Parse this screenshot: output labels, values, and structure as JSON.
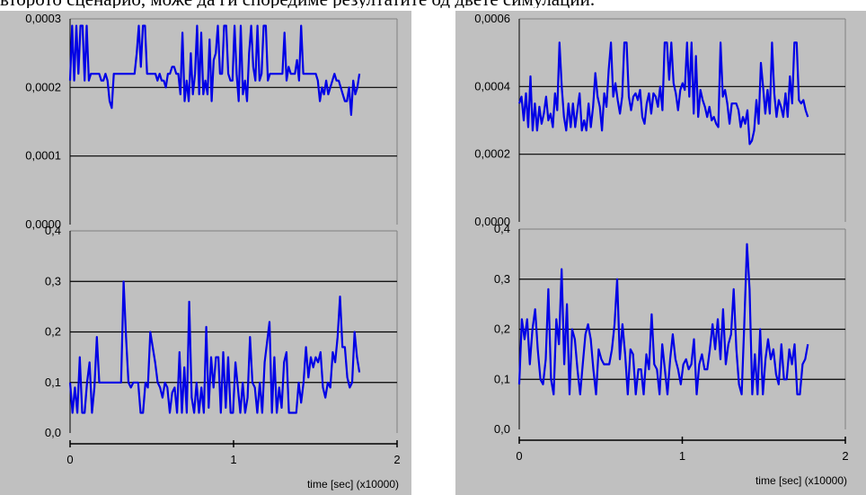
{
  "caption": "второто сценарио, може да ги споредиме резултатите од двете симулации.",
  "colors": {
    "background": "#c0c0c0",
    "line": "#0000e6",
    "grid": "#000000"
  },
  "chart_data": [
    {
      "type": "line",
      "panel": "left-top",
      "ylim": [
        0,
        0.0003
      ],
      "yticks": [
        "0,0000",
        "0,0001",
        "0,0002",
        "0,0003"
      ],
      "gridlines": [
        0.0001,
        0.0002
      ],
      "xlim": [
        0,
        2
      ],
      "x_start": 0,
      "x_end": 1.77,
      "series": [
        {
          "values": [
            0.00021,
            0.00029,
            0.00021,
            0.00029,
            0.00022,
            0.00029,
            0.00029,
            0.00021,
            0.00029,
            0.00021,
            0.00022,
            0.00022,
            0.00022,
            0.00022,
            0.00022,
            0.00021,
            0.00021,
            0.00022,
            0.00021,
            0.00018,
            0.00017,
            0.00022,
            0.00022,
            0.00022,
            0.00022,
            0.00022,
            0.00022,
            0.00022,
            0.00022,
            0.00022,
            0.00022,
            0.00022,
            0.00025,
            0.00029,
            0.00023,
            0.00029,
            0.00029,
            0.00022,
            0.00022,
            0.00022,
            0.00022,
            0.00022,
            0.00021,
            0.00022,
            0.00021,
            0.00021,
            0.0002,
            0.00022,
            0.00022,
            0.00023,
            0.00023,
            0.00022,
            0.00022,
            0.00019,
            0.00028,
            0.00018,
            0.00021,
            0.00018,
            0.00025,
            0.00019,
            0.00022,
            0.00029,
            0.00019,
            0.00028,
            0.00019,
            0.00021,
            0.00019,
            0.00027,
            0.00018,
            0.00024,
            0.00025,
            0.00029,
            0.00022,
            0.00022,
            0.00029,
            0.00029,
            0.00022,
            0.00021,
            0.00021,
            0.00029,
            0.00022,
            0.00018,
            0.00029,
            0.00019,
            0.00021,
            0.00018,
            0.00025,
            0.00029,
            0.00023,
            0.00021,
            0.00029,
            0.00021,
            0.00022,
            0.00029,
            0.00029,
            0.00021,
            0.00022,
            0.00022,
            0.00022,
            0.00022,
            0.00022,
            0.00022,
            0.00022,
            0.00028,
            0.00021,
            0.00023,
            0.00022,
            0.00022,
            0.00022,
            0.00024,
            0.00021,
            0.00029,
            0.00022,
            0.00022,
            0.00022,
            0.00022,
            0.00022,
            0.00022,
            0.00022,
            0.00021,
            0.00018,
            0.0002,
            0.00019,
            0.00021,
            0.00019,
            0.0002,
            0.00021,
            0.00022,
            0.00021,
            0.00021,
            0.0002,
            0.00019,
            0.00018,
            0.00018,
            0.0002,
            0.00016,
            0.00021,
            0.00019,
            0.0002,
            0.00022
          ]
        }
      ]
    },
    {
      "type": "line",
      "panel": "left-bottom",
      "ylim": [
        0,
        0.4
      ],
      "yticks": [
        "0,0",
        "0,1",
        "0,2",
        "0,3",
        "0,4"
      ],
      "gridlines": [
        0.1,
        0.2,
        0.3
      ],
      "xlim": [
        0,
        2
      ],
      "xticks": [
        "0",
        "1",
        "2"
      ],
      "xlabel": "time [sec] (x10000)",
      "x_start": 0,
      "x_end": 1.77,
      "series": [
        {
          "values": [
            0.1,
            0.04,
            0.09,
            0.04,
            0.15,
            0.04,
            0.04,
            0.1,
            0.14,
            0.04,
            0.09,
            0.19,
            0.1,
            0.1,
            0.1,
            0.1,
            0.1,
            0.1,
            0.1,
            0.1,
            0.1,
            0.1,
            0.3,
            0.19,
            0.1,
            0.09,
            0.1,
            0.1,
            0.1,
            0.04,
            0.04,
            0.1,
            0.09,
            0.2,
            0.17,
            0.14,
            0.1,
            0.09,
            0.07,
            0.1,
            0.09,
            0.04,
            0.08,
            0.09,
            0.04,
            0.16,
            0.04,
            0.13,
            0.04,
            0.26,
            0.07,
            0.04,
            0.1,
            0.04,
            0.09,
            0.04,
            0.21,
            0.05,
            0.15,
            0.09,
            0.15,
            0.15,
            0.04,
            0.16,
            0.05,
            0.15,
            0.04,
            0.04,
            0.14,
            0.09,
            0.04,
            0.1,
            0.04,
            0.07,
            0.19,
            0.1,
            0.09,
            0.04,
            0.1,
            0.04,
            0.14,
            0.18,
            0.22,
            0.04,
            0.15,
            0.04,
            0.09,
            0.05,
            0.14,
            0.16,
            0.04,
            0.04,
            0.04,
            0.04,
            0.1,
            0.06,
            0.1,
            0.17,
            0.11,
            0.15,
            0.13,
            0.15,
            0.14,
            0.16,
            0.09,
            0.07,
            0.1,
            0.09,
            0.16,
            0.14,
            0.19,
            0.27,
            0.17,
            0.17,
            0.11,
            0.09,
            0.1,
            0.2,
            0.15,
            0.12
          ]
        }
      ]
    },
    {
      "type": "line",
      "panel": "right-top",
      "ylim": [
        0,
        0.0006
      ],
      "yticks": [
        "0,0000",
        "0,0002",
        "0,0004",
        "0,0006"
      ],
      "gridlines": [
        0.0002,
        0.0004
      ],
      "xlim": [
        0,
        2
      ],
      "x_start": 0,
      "x_end": 1.77,
      "series": [
        {
          "values": [
            0.00035,
            0.00037,
            0.0003,
            0.00038,
            0.00028,
            0.00043,
            0.00027,
            0.00035,
            0.00027,
            0.00034,
            0.00029,
            0.00032,
            0.00037,
            0.0003,
            0.00032,
            0.00028,
            0.00038,
            0.00033,
            0.00053,
            0.0004,
            0.00031,
            0.00027,
            0.00035,
            0.00028,
            0.00035,
            0.00028,
            0.00033,
            0.00038,
            0.00027,
            0.0003,
            0.00027,
            0.00035,
            0.00028,
            0.00034,
            0.00044,
            0.00037,
            0.00034,
            0.00027,
            0.00038,
            0.00034,
            0.00045,
            0.00053,
            0.00037,
            0.00041,
            0.00036,
            0.00032,
            0.00037,
            0.00053,
            0.00053,
            0.00037,
            0.00033,
            0.00037,
            0.00038,
            0.00036,
            0.00039,
            0.00031,
            0.00029,
            0.00035,
            0.00038,
            0.00032,
            0.00038,
            0.00037,
            0.00034,
            0.0004,
            0.00033,
            0.00053,
            0.00053,
            0.00042,
            0.00053,
            0.00041,
            0.00038,
            0.00033,
            0.00039,
            0.00041,
            0.00039,
            0.00053,
            0.00037,
            0.00053,
            0.00032,
            0.00049,
            0.00031,
            0.00039,
            0.00036,
            0.00034,
            0.00031,
            0.00034,
            0.0003,
            0.00031,
            0.00029,
            0.00028,
            0.00053,
            0.00037,
            0.00039,
            0.00035,
            0.00029,
            0.00035,
            0.00035,
            0.00035,
            0.00033,
            0.00028,
            0.00031,
            0.00029,
            0.00033,
            0.00023,
            0.00024,
            0.00027,
            0.00036,
            0.00029,
            0.00047,
            0.0004,
            0.00032,
            0.00039,
            0.00032,
            0.00053,
            0.00038,
            0.00031,
            0.00036,
            0.00034,
            0.00031,
            0.00038,
            0.00031,
            0.00043,
            0.00035,
            0.00053,
            0.00053,
            0.00036,
            0.00035,
            0.00036,
            0.00033,
            0.00031
          ]
        }
      ]
    },
    {
      "type": "line",
      "panel": "right-bottom",
      "ylim": [
        0,
        0.4
      ],
      "yticks": [
        "0,0",
        "0,1",
        "0,2",
        "0,3",
        "0,4"
      ],
      "gridlines": [
        0.1,
        0.2,
        0.3
      ],
      "xlim": [
        0,
        2
      ],
      "xticks": [
        "0",
        "1",
        "2"
      ],
      "xlabel": "time [sec] (x10000)",
      "x_start": 0,
      "x_end": 1.77,
      "series": [
        {
          "values": [
            0.09,
            0.22,
            0.18,
            0.22,
            0.13,
            0.2,
            0.24,
            0.16,
            0.1,
            0.09,
            0.14,
            0.28,
            0.1,
            0.07,
            0.22,
            0.17,
            0.32,
            0.13,
            0.25,
            0.07,
            0.2,
            0.18,
            0.12,
            0.07,
            0.13,
            0.19,
            0.21,
            0.18,
            0.12,
            0.07,
            0.16,
            0.14,
            0.13,
            0.13,
            0.13,
            0.16,
            0.21,
            0.3,
            0.14,
            0.21,
            0.15,
            0.07,
            0.16,
            0.15,
            0.07,
            0.12,
            0.12,
            0.07,
            0.15,
            0.12,
            0.23,
            0.13,
            0.12,
            0.07,
            0.17,
            0.12,
            0.07,
            0.14,
            0.19,
            0.14,
            0.12,
            0.09,
            0.13,
            0.14,
            0.12,
            0.13,
            0.18,
            0.07,
            0.13,
            0.15,
            0.12,
            0.12,
            0.16,
            0.21,
            0.16,
            0.22,
            0.14,
            0.24,
            0.13,
            0.17,
            0.19,
            0.28,
            0.16,
            0.09,
            0.07,
            0.21,
            0.37,
            0.28,
            0.07,
            0.15,
            0.07,
            0.2,
            0.07,
            0.14,
            0.18,
            0.14,
            0.16,
            0.11,
            0.09,
            0.17,
            0.1,
            0.1,
            0.16,
            0.13,
            0.17,
            0.07,
            0.07,
            0.13,
            0.14,
            0.17
          ]
        }
      ]
    }
  ]
}
